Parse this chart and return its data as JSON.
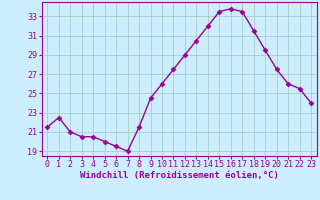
{
  "x": [
    0,
    1,
    2,
    3,
    4,
    5,
    6,
    7,
    8,
    9,
    10,
    11,
    12,
    13,
    14,
    15,
    16,
    17,
    18,
    19,
    20,
    21,
    22,
    23
  ],
  "y": [
    21.5,
    22.5,
    21.0,
    20.5,
    20.5,
    20.0,
    19.5,
    19.0,
    21.5,
    24.5,
    26.0,
    27.5,
    29.0,
    30.5,
    32.0,
    33.5,
    33.8,
    33.5,
    31.5,
    29.5,
    27.5,
    26.0,
    25.5,
    24.0
  ],
  "line_color": "#990099",
  "marker": "D",
  "markersize": 2.5,
  "linewidth": 1.0,
  "bg_color": "#cceeff",
  "grid_color": "#aacccc",
  "xlabel": "Windchill (Refroidissement éolien,°C)",
  "ylim": [
    18.5,
    34.5
  ],
  "yticks": [
    19,
    21,
    23,
    25,
    27,
    29,
    31,
    33
  ],
  "xticks": [
    0,
    1,
    2,
    3,
    4,
    5,
    6,
    7,
    8,
    9,
    10,
    11,
    12,
    13,
    14,
    15,
    16,
    17,
    18,
    19,
    20,
    21,
    22,
    23
  ],
  "xlabel_fontsize": 6.5,
  "tick_fontsize": 6.0,
  "tick_color": "#990099",
  "label_color": "#990099",
  "axis_color": "#990099"
}
